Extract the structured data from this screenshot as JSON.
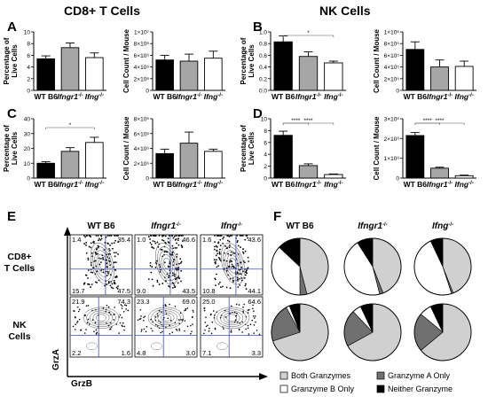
{
  "headers": {
    "left": "CD8+ T Cells",
    "right": "NK Cells"
  },
  "panel_letters": {
    "A": "A",
    "B": "B",
    "C": "C",
    "D": "D",
    "E": "E",
    "F": "F"
  },
  "colors": {
    "wt": "#000000",
    "ifngr1": "#a6a6a6",
    "ifng": "#ffffff",
    "gate": "#3b4fbf",
    "both": "#d0d0d0",
    "granzB": "#ffffff",
    "granzA": "#707070",
    "neither": "#000000"
  },
  "chart_data": [
    {
      "id": "A1",
      "type": "bar",
      "ylabel": "Percentage of Live Cells",
      "categories": [
        "WT B6",
        "Ifngr1-/-",
        "Ifng-/-"
      ],
      "values": [
        5.4,
        7.3,
        5.6
      ],
      "errors": [
        0.5,
        0.8,
        0.8
      ],
      "ylim": [
        0,
        10
      ],
      "yticks": [
        "0",
        "2",
        "4",
        "6",
        "8",
        "10"
      ],
      "sig": []
    },
    {
      "id": "A2",
      "type": "bar",
      "ylabel": "Cell Count / Mouse",
      "categories": [
        "WT B6",
        "Ifngr1-/-",
        "Ifng-/-"
      ],
      "values": [
        5.2,
        5.0,
        5.5
      ],
      "errors": [
        0.8,
        1.2,
        1.2
      ],
      "ylim": [
        0,
        10
      ],
      "sig": [],
      "yticks": [
        "0",
        "2×10⁶",
        "4×10⁶",
        "6×10⁶",
        "8×10⁶",
        "1×10⁷"
      ]
    },
    {
      "id": "B1",
      "type": "bar",
      "ylabel": "Percentage of Live Cells",
      "categories": [
        "WT B6",
        "Ifngr1-/-",
        "Ifng-/-"
      ],
      "values": [
        0.83,
        0.58,
        0.47
      ],
      "errors": [
        0.1,
        0.08,
        0.03
      ],
      "ylim": [
        0,
        1.0
      ],
      "yticks": [
        "0.0",
        "0.2",
        "0.4",
        "0.6",
        "0.8",
        "1.0"
      ],
      "sig": [
        {
          "from": 0,
          "to": 2,
          "label": "*"
        }
      ]
    },
    {
      "id": "B2",
      "type": "bar",
      "ylabel": "Cell Count / Mouse",
      "categories": [
        "WT B6",
        "Ifngr1-/-",
        "Ifng-/-"
      ],
      "values": [
        7.0,
        4.0,
        4.1
      ],
      "errors": [
        1.3,
        1.2,
        0.9
      ],
      "ylim": [
        0,
        10
      ],
      "sig": [],
      "yticks": [
        "0",
        "2×10⁵",
        "4×10⁵",
        "6×10⁵",
        "8×10⁵",
        "1×10⁶"
      ]
    },
    {
      "id": "C1",
      "type": "bar",
      "ylabel": "Percentage of Live Cells",
      "categories": [
        "WT B6",
        "Ifngr1-/-",
        "Ifng-/-"
      ],
      "values": [
        10,
        18,
        24
      ],
      "errors": [
        1.0,
        2.5,
        3.5
      ],
      "ylim": [
        0,
        40
      ],
      "yticks": [
        "0",
        "10",
        "20",
        "30",
        "40"
      ],
      "sig": [
        {
          "from": 0,
          "to": 2,
          "label": "*"
        }
      ]
    },
    {
      "id": "C2",
      "type": "bar",
      "ylabel": "Cell Count / Mouse",
      "categories": [
        "WT B6",
        "Ifngr1-/-",
        "Ifng-/-"
      ],
      "values": [
        3.3,
        4.7,
        3.6
      ],
      "errors": [
        0.6,
        1.5,
        0.3
      ],
      "ylim": [
        0,
        8
      ],
      "sig": [],
      "yticks": [
        "0",
        "2×10⁶",
        "4×10⁶",
        "6×10⁶",
        "8×10⁶"
      ]
    },
    {
      "id": "D1",
      "type": "bar",
      "ylabel": "Percentage of Live Cells",
      "categories": [
        "WT B6",
        "Ifngr1-/-",
        "Ifng-/-"
      ],
      "values": [
        7.2,
        2.1,
        0.6
      ],
      "errors": [
        0.7,
        0.3,
        0.1
      ],
      "ylim": [
        0,
        10
      ],
      "yticks": [
        "0",
        "2",
        "4",
        "6",
        "8",
        "10"
      ],
      "sig": [
        {
          "from": 0,
          "to": 1,
          "label": "****"
        },
        {
          "from": 0,
          "to": 2,
          "label": "****"
        }
      ]
    },
    {
      "id": "D2",
      "type": "bar",
      "ylabel": "Cell Count / Mouse",
      "categories": [
        "WT B6",
        "Ifngr1-/-",
        "Ifng-/-"
      ],
      "values": [
        2.15,
        0.5,
        0.12
      ],
      "errors": [
        0.15,
        0.05,
        0.03
      ],
      "ylim": [
        0,
        3
      ],
      "yticks": [
        "0",
        "1×10⁶",
        "2×10⁶",
        "3×10⁶"
      ],
      "sig": [
        {
          "from": 0,
          "to": 1,
          "label": "****"
        },
        {
          "from": 0,
          "to": 2,
          "label": "****"
        }
      ]
    },
    {
      "id": "E",
      "type": "flow-contour",
      "column_titles": [
        "WT B6",
        "Ifngr1-/-",
        "Ifng-/-"
      ],
      "row_titles": [
        "CD8+ T Cells",
        "NK Cells"
      ],
      "xlabel": "GrzB",
      "ylabel": "GrzA",
      "quadrants": [
        [
          [
            "1.4",
            "35.4",
            "15.7",
            "47.5"
          ],
          [
            "1.0",
            "46.6",
            "9.0",
            "43.5"
          ],
          [
            "1.6",
            "43.6",
            "10.8",
            "44.1"
          ]
        ],
        [
          [
            "21.9",
            "74.3",
            "2.2",
            "1.6"
          ],
          [
            "23.3",
            "69.0",
            "4.8",
            "3.0"
          ],
          [
            "25.0",
            "64.6",
            "7.1",
            "3.3"
          ]
        ]
      ]
    },
    {
      "id": "F",
      "type": "pie",
      "column_titles": [
        "WT B6",
        "Ifngr1-/-",
        "Ifng-/-"
      ],
      "legend": [
        "Both Granzymes",
        "Granzyme A Only",
        "Granzyme B Only",
        "Neither Granzyme"
      ],
      "pies": [
        [
          [
            46,
            4,
            37,
            13
          ],
          [
            44,
            2,
            45,
            9
          ],
          [
            44,
            1,
            48,
            7
          ]
        ],
        [
          [
            70,
            22,
            2,
            6
          ],
          [
            67,
            21,
            5,
            7
          ],
          [
            64,
            22,
            7,
            7
          ]
        ]
      ]
    }
  ]
}
